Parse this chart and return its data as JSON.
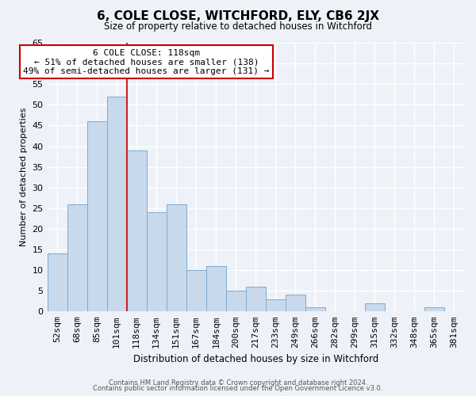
{
  "title": "6, COLE CLOSE, WITCHFORD, ELY, CB6 2JX",
  "subtitle": "Size of property relative to detached houses in Witchford",
  "xlabel": "Distribution of detached houses by size in Witchford",
  "ylabel": "Number of detached properties",
  "categories": [
    "52sqm",
    "68sqm",
    "85sqm",
    "101sqm",
    "118sqm",
    "134sqm",
    "151sqm",
    "167sqm",
    "184sqm",
    "200sqm",
    "217sqm",
    "233sqm",
    "249sqm",
    "266sqm",
    "282sqm",
    "299sqm",
    "315sqm",
    "332sqm",
    "348sqm",
    "365sqm",
    "381sqm"
  ],
  "values": [
    14,
    26,
    46,
    52,
    39,
    24,
    26,
    10,
    11,
    5,
    6,
    3,
    4,
    1,
    0,
    0,
    2,
    0,
    0,
    1,
    0
  ],
  "bar_face_color": "#c9d9ec",
  "bar_edge_color": "#7aaad0",
  "highlight_bar_index": 4,
  "annotation_box_text": "6 COLE CLOSE: 118sqm\n← 51% of detached houses are smaller (138)\n49% of semi-detached houses are larger (131) →",
  "annotation_box_color": "#ffffff",
  "annotation_box_edge_color": "#cc0000",
  "red_line_color": "#cc2222",
  "ylim": [
    0,
    65
  ],
  "yticks": [
    0,
    5,
    10,
    15,
    20,
    25,
    30,
    35,
    40,
    45,
    50,
    55,
    60,
    65
  ],
  "background_color": "#eef2f8",
  "grid_color": "#ffffff",
  "footer_line1": "Contains HM Land Registry data © Crown copyright and database right 2024.",
  "footer_line2": "Contains public sector information licensed under the Open Government Licence v3.0."
}
